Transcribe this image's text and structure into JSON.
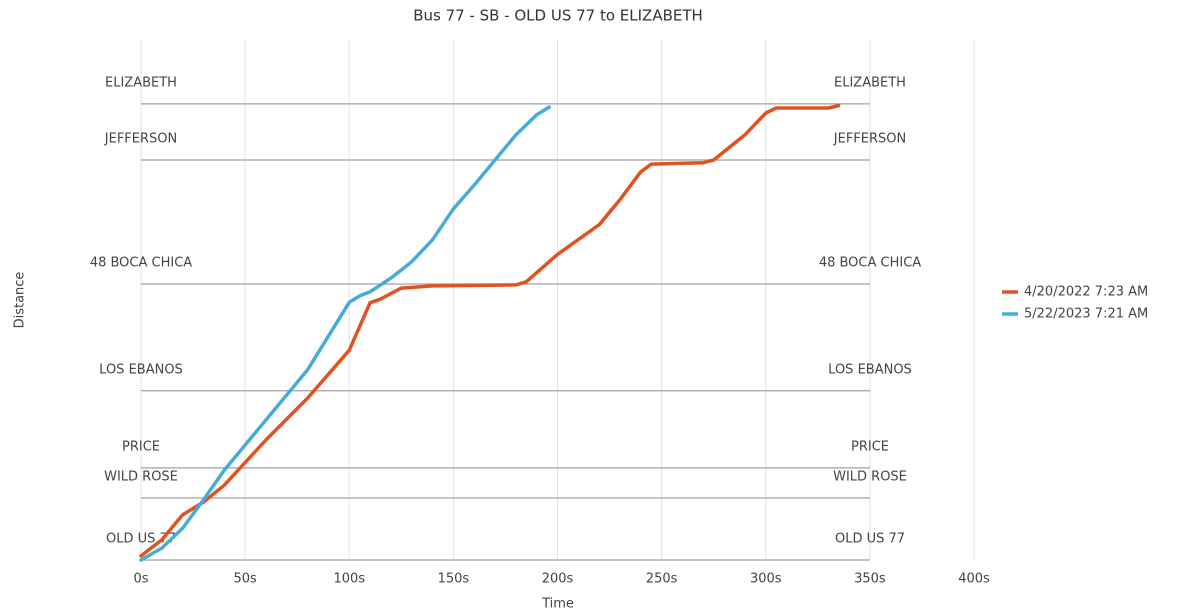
{
  "chart_data": {
    "type": "line",
    "title": "Bus 77 - SB - OLD US 77 to ELIZABETH",
    "x_label": "Time",
    "y_label": "Distance",
    "xlim": [
      0,
      400
    ],
    "xticks": [
      {
        "value": 0,
        "label": "0s"
      },
      {
        "value": 50,
        "label": "50s"
      },
      {
        "value": 100,
        "label": "100s"
      },
      {
        "value": 150,
        "label": "150s"
      },
      {
        "value": 200,
        "label": "200s"
      },
      {
        "value": 250,
        "label": "250s"
      },
      {
        "value": 300,
        "label": "300s"
      },
      {
        "value": 350,
        "label": "350s"
      },
      {
        "value": 400,
        "label": "400s"
      }
    ],
    "ylim": [
      0,
      114
    ],
    "grid": true,
    "legend": "right",
    "stops": [
      {
        "name": "ELIZABETH",
        "distance": 100
      },
      {
        "name": "JEFFERSON",
        "distance": 87.7
      },
      {
        "name": "48 BOCA CHICA",
        "distance": 60.5
      },
      {
        "name": "LOS EBANOS",
        "distance": 37.1
      },
      {
        "name": "PRICE",
        "distance": 20.2
      },
      {
        "name": "WILD ROSE",
        "distance": 13.6
      },
      {
        "name": "OLD US 77",
        "distance": 0
      }
    ],
    "series": [
      {
        "name": "4/20/2022 7:23 AM",
        "color": "#e0521f",
        "x": [
          0,
          10,
          20,
          30,
          40,
          60,
          80,
          100,
          110,
          115,
          125,
          140,
          180,
          185,
          200,
          220,
          230,
          240,
          245,
          270,
          275,
          290,
          300,
          305,
          330,
          335
        ],
        "values": [
          0.9,
          4.4,
          9.9,
          12.7,
          16.4,
          26.3,
          35.5,
          46,
          56.4,
          57.2,
          59.6,
          60.1,
          60.3,
          61,
          67,
          73.5,
          79,
          85.1,
          86.8,
          87.1,
          87.7,
          93.2,
          98,
          99.1,
          99.1,
          99.6
        ]
      },
      {
        "name": "5/22/2023 7:21 AM",
        "color": "#45acd8",
        "x": [
          0,
          10,
          20,
          30,
          40,
          60,
          80,
          100,
          105,
          110,
          120,
          130,
          140,
          150,
          160,
          170,
          180,
          190,
          196
        ],
        "values": [
          0,
          2.6,
          7,
          13.2,
          19.7,
          30.7,
          41.7,
          56.5,
          57.9,
          58.8,
          61.8,
          65.4,
          70.2,
          77,
          82.2,
          87.7,
          93.2,
          97.6,
          99.3
        ]
      }
    ]
  }
}
